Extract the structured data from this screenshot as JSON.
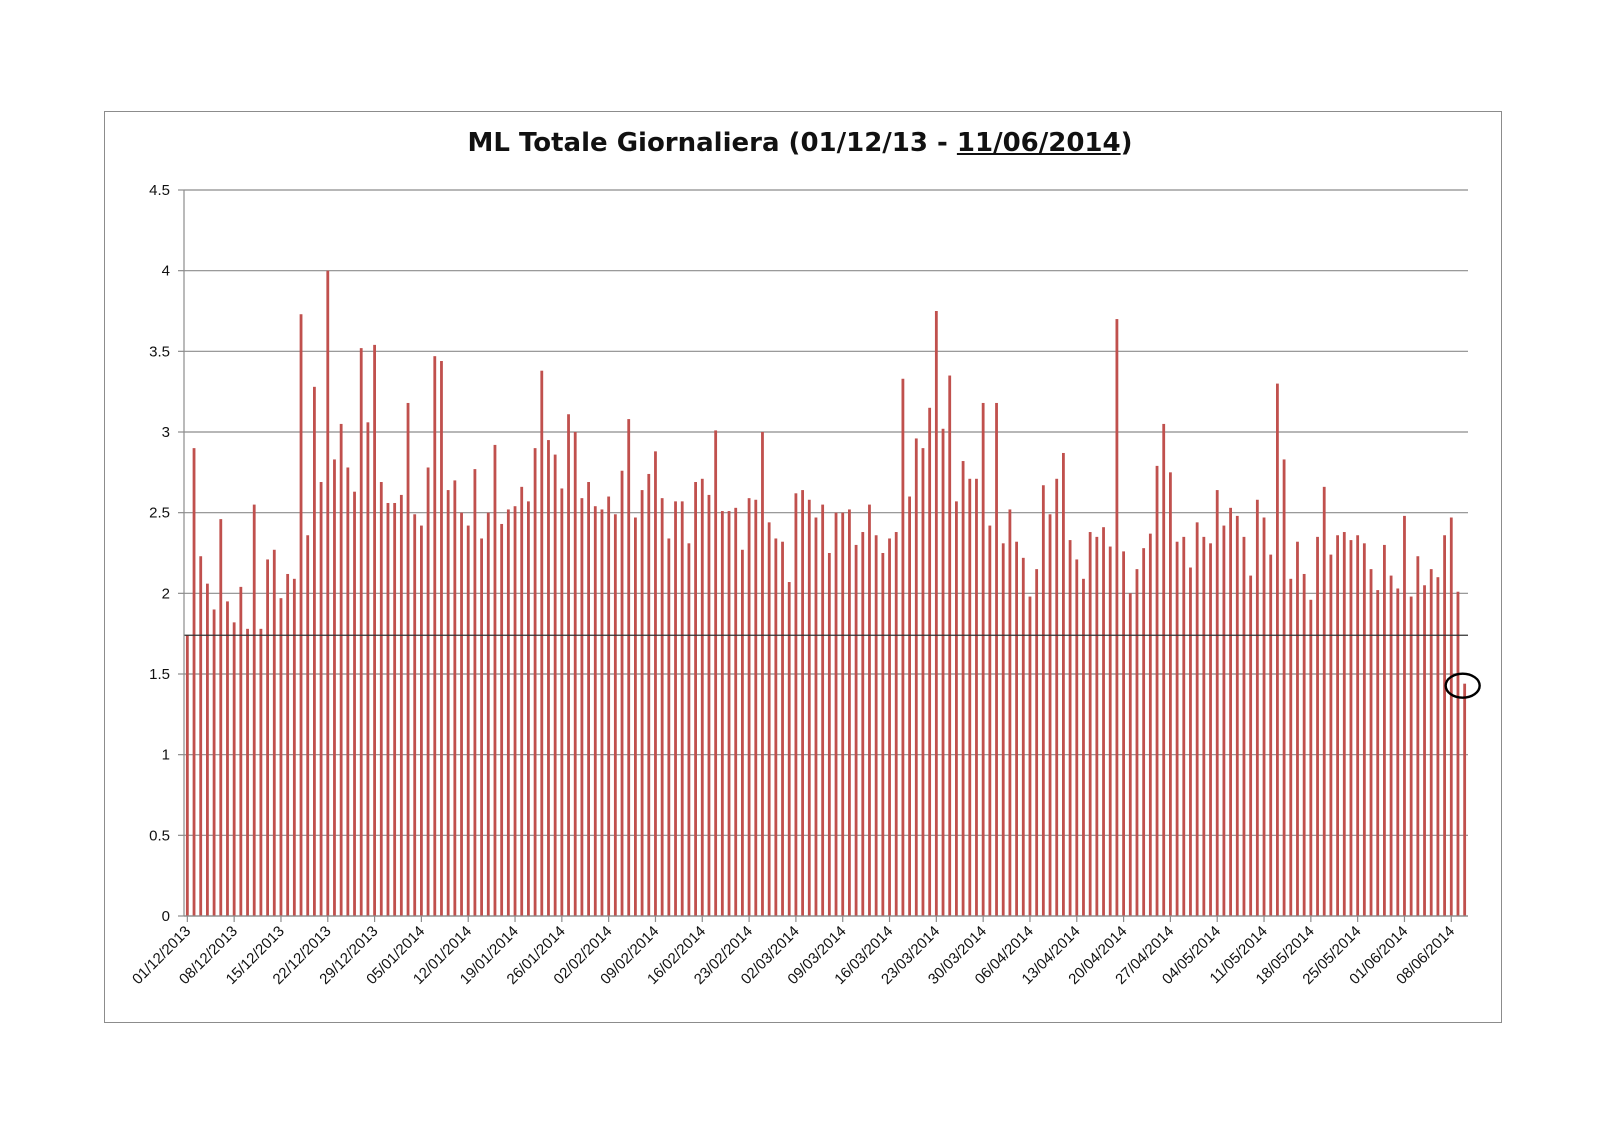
{
  "chart_data": {
    "type": "bar",
    "title_parts": [
      "ML Totale Giornaliera (01/12/13 - ",
      "11/06/2014",
      ")"
    ],
    "xlabel": "",
    "ylabel": "",
    "ylim": [
      0,
      4.5
    ],
    "y_ticks": [
      "0",
      "0.5",
      "1",
      "1.5",
      "2",
      "2.5",
      "3",
      "3.5",
      "4",
      "4.5"
    ],
    "grid": true,
    "bar_color": "#c0504d",
    "reference_line": 1.74,
    "highlighted_date": "11/06/2014",
    "x_tick_labels": [
      "01/12/2013",
      "08/12/2013",
      "15/12/2013",
      "22/12/2013",
      "29/12/2013",
      "05/01/2014",
      "12/01/2014",
      "19/01/2014",
      "26/01/2014",
      "02/02/2014",
      "09/02/2014",
      "16/02/2014",
      "23/02/2014",
      "02/03/2014",
      "09/03/2014",
      "16/03/2014",
      "23/03/2014",
      "30/03/2014",
      "06/04/2014",
      "13/04/2014",
      "20/04/2014",
      "27/04/2014",
      "04/05/2014",
      "11/05/2014",
      "18/05/2014",
      "25/05/2014",
      "01/06/2014",
      "08/06/2014"
    ],
    "start_date": "01/12/2013",
    "values": [
      1.74,
      2.9,
      2.23,
      2.06,
      1.9,
      2.46,
      1.95,
      1.82,
      2.04,
      1.78,
      2.55,
      1.78,
      2.21,
      2.27,
      1.97,
      2.12,
      2.09,
      3.73,
      2.36,
      3.28,
      2.69,
      4.0,
      2.83,
      3.05,
      2.78,
      2.63,
      3.52,
      3.06,
      3.54,
      2.69,
      2.56,
      2.56,
      2.61,
      3.18,
      2.49,
      2.42,
      2.78,
      3.47,
      3.44,
      2.64,
      2.7,
      2.5,
      2.42,
      2.77,
      2.34,
      2.5,
      2.92,
      2.43,
      2.52,
      2.54,
      2.66,
      2.57,
      2.9,
      3.38,
      2.95,
      2.86,
      2.65,
      3.11,
      3.0,
      2.59,
      2.69,
      2.54,
      2.52,
      2.6,
      2.49,
      2.76,
      3.08,
      2.47,
      2.64,
      2.74,
      2.88,
      2.59,
      2.34,
      2.57,
      2.57,
      2.31,
      2.69,
      2.71,
      2.61,
      3.01,
      2.51,
      2.51,
      2.53,
      2.27,
      2.59,
      2.58,
      3.0,
      2.44,
      2.34,
      2.32,
      2.07,
      2.62,
      2.64,
      2.58,
      2.47,
      2.55,
      2.25,
      2.5,
      2.5,
      2.52,
      2.3,
      2.38,
      2.55,
      2.36,
      2.25,
      2.34,
      2.38,
      3.33,
      2.6,
      2.96,
      2.9,
      3.15,
      3.75,
      3.02,
      3.35,
      2.57,
      2.82,
      2.71,
      2.71,
      3.18,
      2.42,
      3.18,
      2.31,
      2.52,
      2.32,
      2.22,
      1.98,
      2.15,
      2.67,
      2.49,
      2.71,
      2.87,
      2.33,
      2.21,
      2.09,
      2.38,
      2.35,
      2.41,
      2.29,
      3.7,
      2.26,
      2.0,
      2.15,
      2.28,
      2.37,
      2.79,
      3.05,
      2.75,
      2.32,
      2.35,
      2.16,
      2.44,
      2.35,
      2.31,
      2.64,
      2.42,
      2.53,
      2.48,
      2.35,
      2.11,
      2.58,
      2.47,
      2.24,
      3.3,
      2.83,
      2.09,
      2.32,
      2.12,
      1.96,
      2.35,
      2.66,
      2.24,
      2.36,
      2.38,
      2.33,
      2.36,
      2.31,
      2.15,
      2.02,
      2.3,
      2.11,
      2.03,
      2.48,
      1.98,
      2.23,
      2.05,
      2.15,
      2.1,
      2.36,
      2.47,
      2.01,
      1.44
    ]
  }
}
